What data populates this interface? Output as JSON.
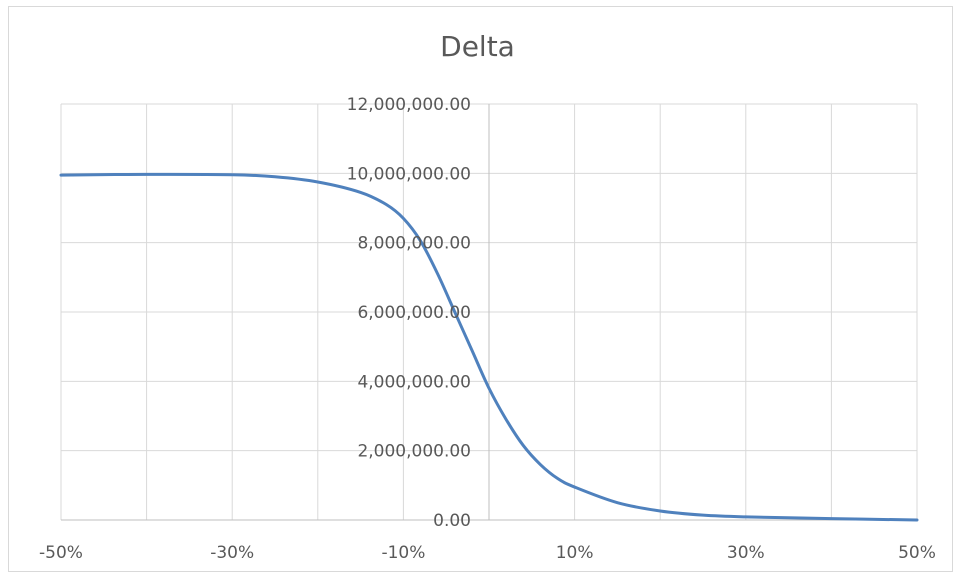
{
  "chart_data": {
    "type": "line",
    "title": "Delta",
    "xlabel": "",
    "ylabel": "",
    "xlim": [
      -50,
      50
    ],
    "ylim": [
      0,
      12000000
    ],
    "x_ticks": [
      -50,
      -30,
      -10,
      10,
      30,
      50
    ],
    "x_tick_labels": [
      "-50%",
      "-30%",
      "-10%",
      "10%",
      "30%",
      "50%"
    ],
    "y_ticks": [
      0,
      2000000,
      4000000,
      6000000,
      8000000,
      10000000,
      12000000
    ],
    "y_tick_labels": [
      "0.00",
      "2,000,000.00",
      "4,000,000.00",
      "6,000,000.00",
      "8,000,000.00",
      "10,000,000.00",
      "12,000,000.00"
    ],
    "grid": true,
    "legend": "none",
    "series": [
      {
        "color": "#4f81bd",
        "x": [
          -50,
          -40,
          -30,
          -25,
          -20,
          -15,
          -12,
          -10,
          -8,
          -6,
          -4,
          -2,
          0,
          2,
          4,
          6,
          8,
          10,
          15,
          20,
          25,
          30,
          40,
          50
        ],
        "y": [
          9950000,
          9970000,
          9960000,
          9900000,
          9750000,
          9450000,
          9100000,
          8700000,
          8050000,
          7100000,
          6000000,
          4900000,
          3800000,
          2900000,
          2150000,
          1600000,
          1200000,
          950000,
          500000,
          260000,
          140000,
          90000,
          40000,
          0
        ]
      }
    ]
  }
}
